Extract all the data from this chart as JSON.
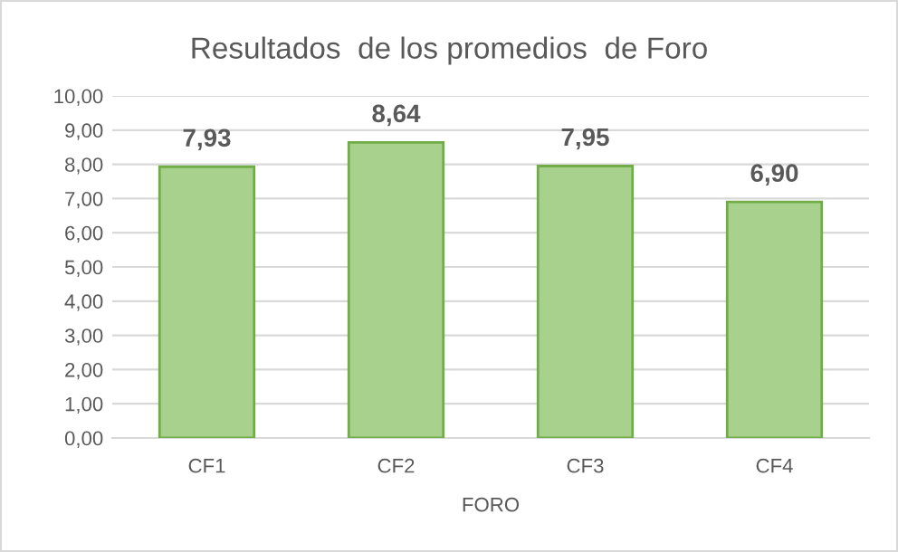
{
  "chart_data": {
    "type": "bar",
    "title": "Resultados  de los promedios  de Foro",
    "xlabel": "FORO",
    "categories": [
      "CF1",
      "CF2",
      "CF3",
      "CF4"
    ],
    "values": [
      7.93,
      8.64,
      7.95,
      6.9
    ],
    "value_labels": [
      "7,93",
      "8,64",
      "7,95",
      "6,90"
    ],
    "color": "#a9d18e",
    "ylim": [
      0,
      10
    ],
    "yticks": [
      {
        "value": 0,
        "label": "0,00"
      },
      {
        "value": 1,
        "label": "1,00"
      },
      {
        "value": 2,
        "label": "2,00"
      },
      {
        "value": 3,
        "label": "3,00"
      },
      {
        "value": 4,
        "label": "4,00"
      },
      {
        "value": 5,
        "label": "5,00"
      },
      {
        "value": 6,
        "label": "6,00"
      },
      {
        "value": 7,
        "label": "7,00"
      },
      {
        "value": 8,
        "label": "8,00"
      },
      {
        "value": 9,
        "label": "9,00"
      },
      {
        "value": 10,
        "label": "10,00"
      }
    ],
    "grid": "y"
  }
}
